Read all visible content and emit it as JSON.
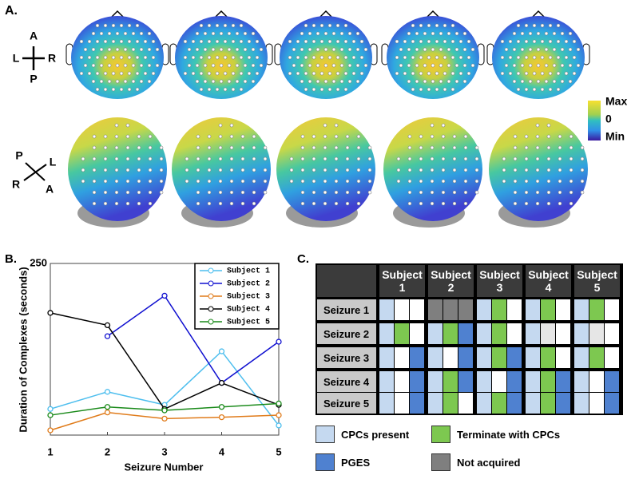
{
  "panel_a": {
    "label": "A.",
    "top_orientation": {
      "anterior": "A",
      "left": "L",
      "right": "R",
      "posterior": "P"
    },
    "back_orientation": {
      "posterior": "P",
      "left": "L",
      "right": "R",
      "anterior": "A"
    },
    "colorbar": {
      "max": "Max",
      "zero": "0",
      "min": "Min"
    }
  },
  "chart_data": {
    "type": "line",
    "panel_label": "B.",
    "x_label": "Seizure Number",
    "y_label": "Duration of Complexes (seconds)",
    "x": [
      1,
      2,
      3,
      4,
      5
    ],
    "xlim": [
      1,
      5
    ],
    "xticks": [
      1,
      2,
      3,
      4,
      5
    ],
    "ylim": [
      0,
      250
    ],
    "yticks": [
      250
    ],
    "grid": false,
    "legend": "upper right",
    "series": [
      {
        "name": "Subject 1",
        "color": "#4dbeee",
        "values": [
          38,
          63,
          44,
          122,
          14
        ]
      },
      {
        "name": "Subject 2",
        "color": "#1010d0",
        "values": [
          null,
          144,
          203,
          76,
          136
        ]
      },
      {
        "name": "Subject 3",
        "color": "#e07b1a",
        "values": [
          7,
          33,
          24,
          26,
          29
        ]
      },
      {
        "name": "Subject 4",
        "color": "#000000",
        "values": [
          178,
          160,
          38,
          76,
          44
        ]
      },
      {
        "name": "Subject 5",
        "color": "#1a8a1a",
        "values": [
          29,
          41,
          36,
          41,
          46
        ]
      }
    ]
  },
  "panel_c": {
    "label": "C.",
    "columns": [
      "Subject 1",
      "Subject 2",
      "Subject 3",
      "Subject 4",
      "Subject 5"
    ],
    "rows": [
      {
        "label": "Seizure 1",
        "cells": [
          [
            "#c5d9f0",
            "#ffffff",
            "#ffffff"
          ],
          [
            "#7f7f7f",
            "#7f7f7f",
            "#7f7f7f"
          ],
          [
            "#c5d9f0",
            "#7dc850",
            "#ffffff"
          ],
          [
            "#c5d9f0",
            "#7dc850",
            "#ffffff"
          ],
          [
            "#c5d9f0",
            "#7dc850",
            "#ffffff"
          ]
        ]
      },
      {
        "label": "Seizure 2",
        "cells": [
          [
            "#c5d9f0",
            "#7dc850",
            "#ffffff"
          ],
          [
            "#c5d9f0",
            "#7dc850",
            "#4f81d0"
          ],
          [
            "#c5d9f0",
            "#7dc850",
            "#ffffff"
          ],
          [
            "#c5d9f0",
            "#e6e6e6",
            "#ffffff"
          ],
          [
            "#c5d9f0",
            "#e6e6e6",
            "#ffffff"
          ]
        ]
      },
      {
        "label": "Seizure 3",
        "cells": [
          [
            "#c5d9f0",
            "#ffffff",
            "#4f81d0"
          ],
          [
            "#c5d9f0",
            "#ffffff",
            "#4f81d0"
          ],
          [
            "#c5d9f0",
            "#7dc850",
            "#4f81d0"
          ],
          [
            "#c5d9f0",
            "#7dc850",
            "#ffffff"
          ],
          [
            "#c5d9f0",
            "#7dc850",
            "#ffffff"
          ]
        ]
      },
      {
        "label": "Seizure 4",
        "cells": [
          [
            "#c5d9f0",
            "#ffffff",
            "#4f81d0"
          ],
          [
            "#c5d9f0",
            "#7dc850",
            "#4f81d0"
          ],
          [
            "#c5d9f0",
            "#ffffff",
            "#4f81d0"
          ],
          [
            "#c5d9f0",
            "#7dc850",
            "#4f81d0"
          ],
          [
            "#c5d9f0",
            "#ffffff",
            "#4f81d0"
          ]
        ]
      },
      {
        "label": "Seizure 5",
        "cells": [
          [
            "#c5d9f0",
            "#ffffff",
            "#4f81d0"
          ],
          [
            "#c5d9f0",
            "#7dc850",
            "#ffffff"
          ],
          [
            "#c5d9f0",
            "#7dc850",
            "#4f81d0"
          ],
          [
            "#c5d9f0",
            "#7dc850",
            "#4f81d0"
          ],
          [
            "#c5d9f0",
            "#ffffff",
            "#4f81d0"
          ]
        ]
      }
    ],
    "legend": [
      {
        "label": "CPCs present",
        "color": "#c5d9f0"
      },
      {
        "label": "Terminate with CPCs",
        "color": "#7dc850"
      },
      {
        "label": "PGES",
        "color": "#4f81d0"
      },
      {
        "label": "Not acquired",
        "color": "#7f7f7f"
      }
    ]
  }
}
